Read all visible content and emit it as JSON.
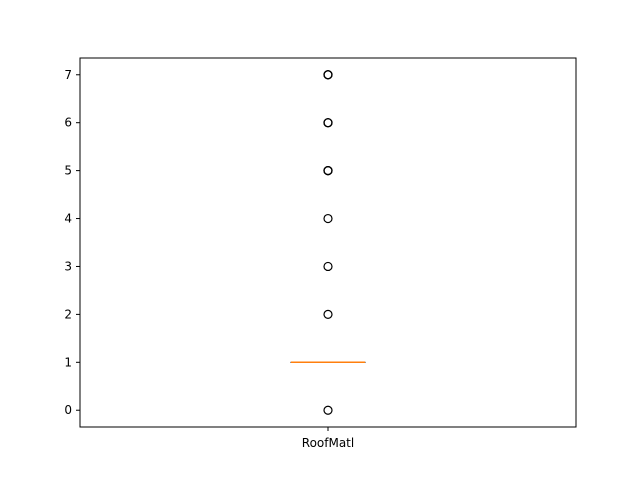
{
  "chart_data": {
    "type": "boxplot",
    "title": "",
    "xlabel": "",
    "ylabel": "",
    "categories": [
      "RoofMatl"
    ],
    "ylim": [
      -0.35,
      7.35
    ],
    "yticks": [
      0,
      1,
      2,
      3,
      4,
      5,
      6,
      7
    ],
    "ytick_labels": [
      "0",
      "1",
      "2",
      "3",
      "4",
      "5",
      "6",
      "7"
    ],
    "grid": false,
    "box": {
      "q1": 1,
      "median": 1,
      "q3": 1,
      "whisker_low": 1,
      "whisker_high": 1
    },
    "outliers": [
      0,
      2,
      3,
      4,
      5,
      5,
      5,
      6,
      6,
      6,
      7,
      7,
      7
    ],
    "colors": {
      "box": "#000000",
      "median": "#ff7f0e",
      "outlier": "#000000",
      "axis": "#000000"
    }
  }
}
